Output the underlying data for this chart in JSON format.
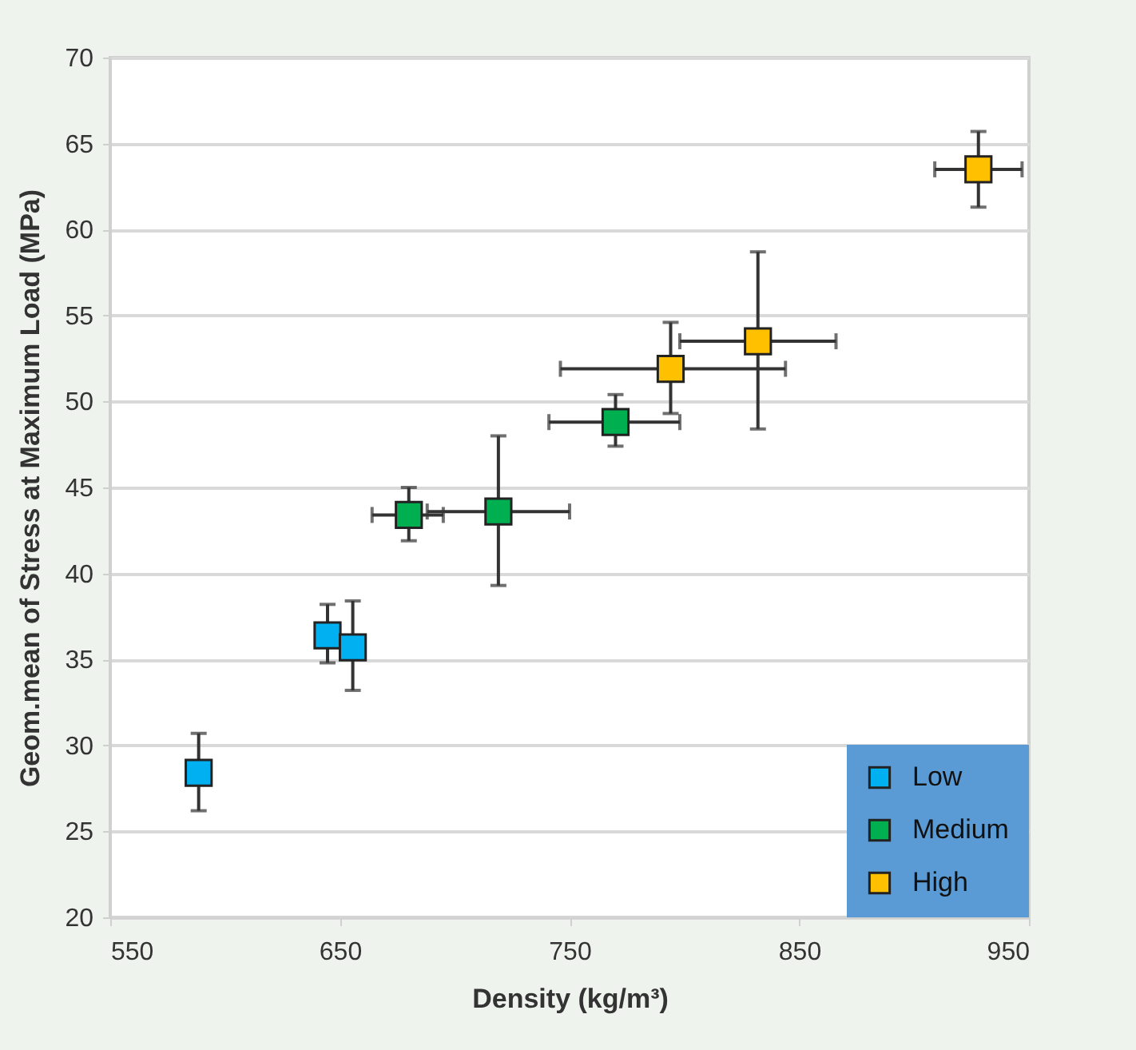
{
  "chart_data": {
    "type": "scatter",
    "xlabel": "Density (kg/m³)",
    "ylabel": "Geom.mean of Stress at Maximum Load (MPa)",
    "xlim": [
      550,
      950
    ],
    "xticks": [
      550,
      650,
      750,
      850,
      950
    ],
    "ylim": [
      20,
      70
    ],
    "yticks": [
      20,
      25,
      30,
      35,
      40,
      45,
      50,
      55,
      60,
      65,
      70
    ],
    "grid": "y",
    "legend": "bottom right",
    "marker": "square",
    "series": [
      {
        "name": "Low",
        "color": "#00b0f0",
        "x": [
          588.5,
          644.6,
          655.6
        ],
        "values": [
          28.4,
          36.4,
          35.7
        ],
        "errors": [
          [
            26.2,
            30.7
          ],
          [
            34.8,
            38.2
          ],
          [
            33.2,
            38.4
          ]
        ]
      },
      {
        "name": "Medium",
        "color": "#00b050",
        "x": [
          680,
          719,
          770
        ],
        "values": [
          43.4,
          43.6,
          48.8
        ],
        "errors": [
          [
            41.9,
            45.0
          ],
          [
            39.3,
            48.0
          ],
          [
            47.4,
            50.4
          ]
        ],
        "xerrors": [
          [
            664,
            695
          ],
          [
            688,
            750
          ],
          [
            741,
            798
          ]
        ]
      },
      {
        "name": "High",
        "color": "#ffc000",
        "x": [
          794,
          832,
          928
        ],
        "values": [
          51.9,
          53.5,
          63.5
        ],
        "errors": [
          [
            49.3,
            54.6
          ],
          [
            48.4,
            58.7
          ],
          [
            61.3,
            65.7
          ]
        ],
        "xerrors": [
          [
            746,
            844
          ],
          [
            798,
            866
          ],
          [
            909,
            947
          ]
        ]
      }
    ]
  }
}
